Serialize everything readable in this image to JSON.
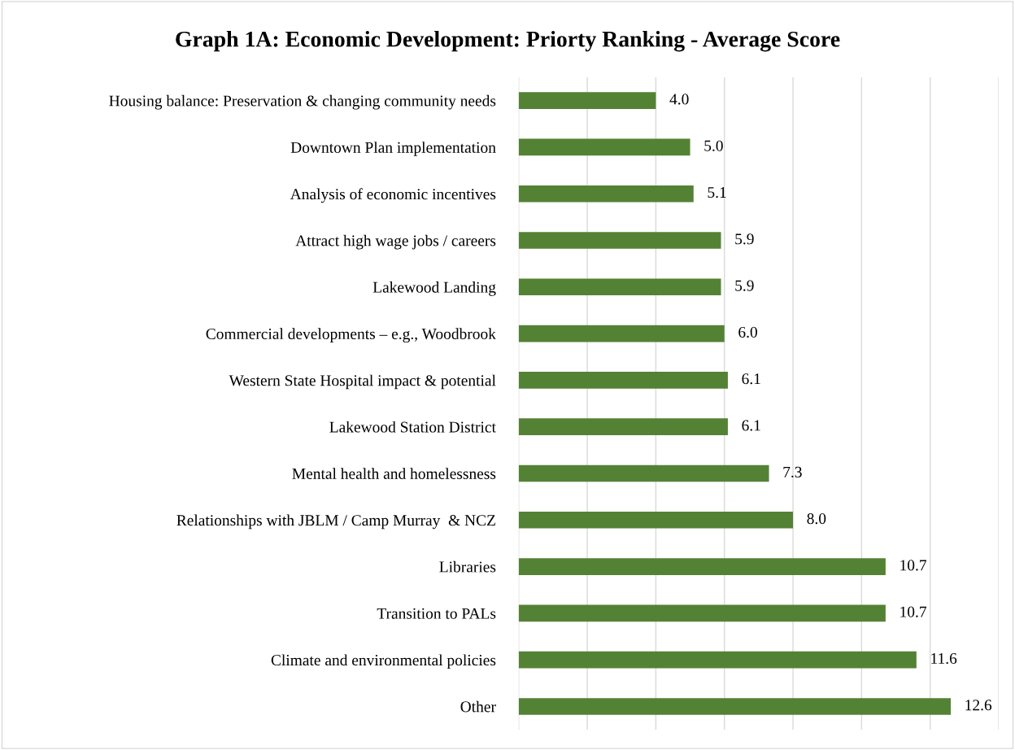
{
  "chart_data": {
    "type": "bar",
    "orientation": "horizontal",
    "title": "Graph 1A: Economic Development: Priorty Ranking - Average Score",
    "categories": [
      "Housing balance: Preservation & changing community needs",
      "Downtown Plan implementation",
      "Analysis of economic incentives",
      "Attract high wage jobs / careers",
      "Lakewood Landing",
      "Commercial developments – e.g., Woodbrook",
      "Western State Hospital impact & potential",
      "Lakewood Station District",
      "Mental health and homelessness",
      "Relationships with JBLM / Camp Murray  & NCZ",
      "Libraries",
      "Transition to PALs",
      "Climate and environmental policies",
      "Other"
    ],
    "values": [
      4.0,
      5.0,
      5.1,
      5.9,
      5.9,
      6.0,
      6.1,
      6.1,
      7.3,
      8.0,
      10.7,
      10.7,
      11.6,
      12.6
    ],
    "value_labels": [
      "4.0",
      "5.0",
      "5.1",
      "5.9",
      "5.9",
      "6.0",
      "6.1",
      "6.1",
      "7.3",
      "8.0",
      "10.7",
      "10.7",
      "11.6",
      "12.6"
    ],
    "color": "#548235",
    "xlim": [
      0,
      14
    ],
    "xticks": [
      {
        "value": 0,
        "label": null
      },
      {
        "value": 2,
        "label": null
      },
      {
        "value": 4,
        "label": null
      },
      {
        "value": 6,
        "label": null
      },
      {
        "value": 8,
        "label": null
      },
      {
        "value": 10,
        "label": null
      },
      {
        "value": 12,
        "label": null
      },
      {
        "value": 14,
        "label": null
      }
    ],
    "tick_labels": "y",
    "grid": "x",
    "legend": false
  }
}
